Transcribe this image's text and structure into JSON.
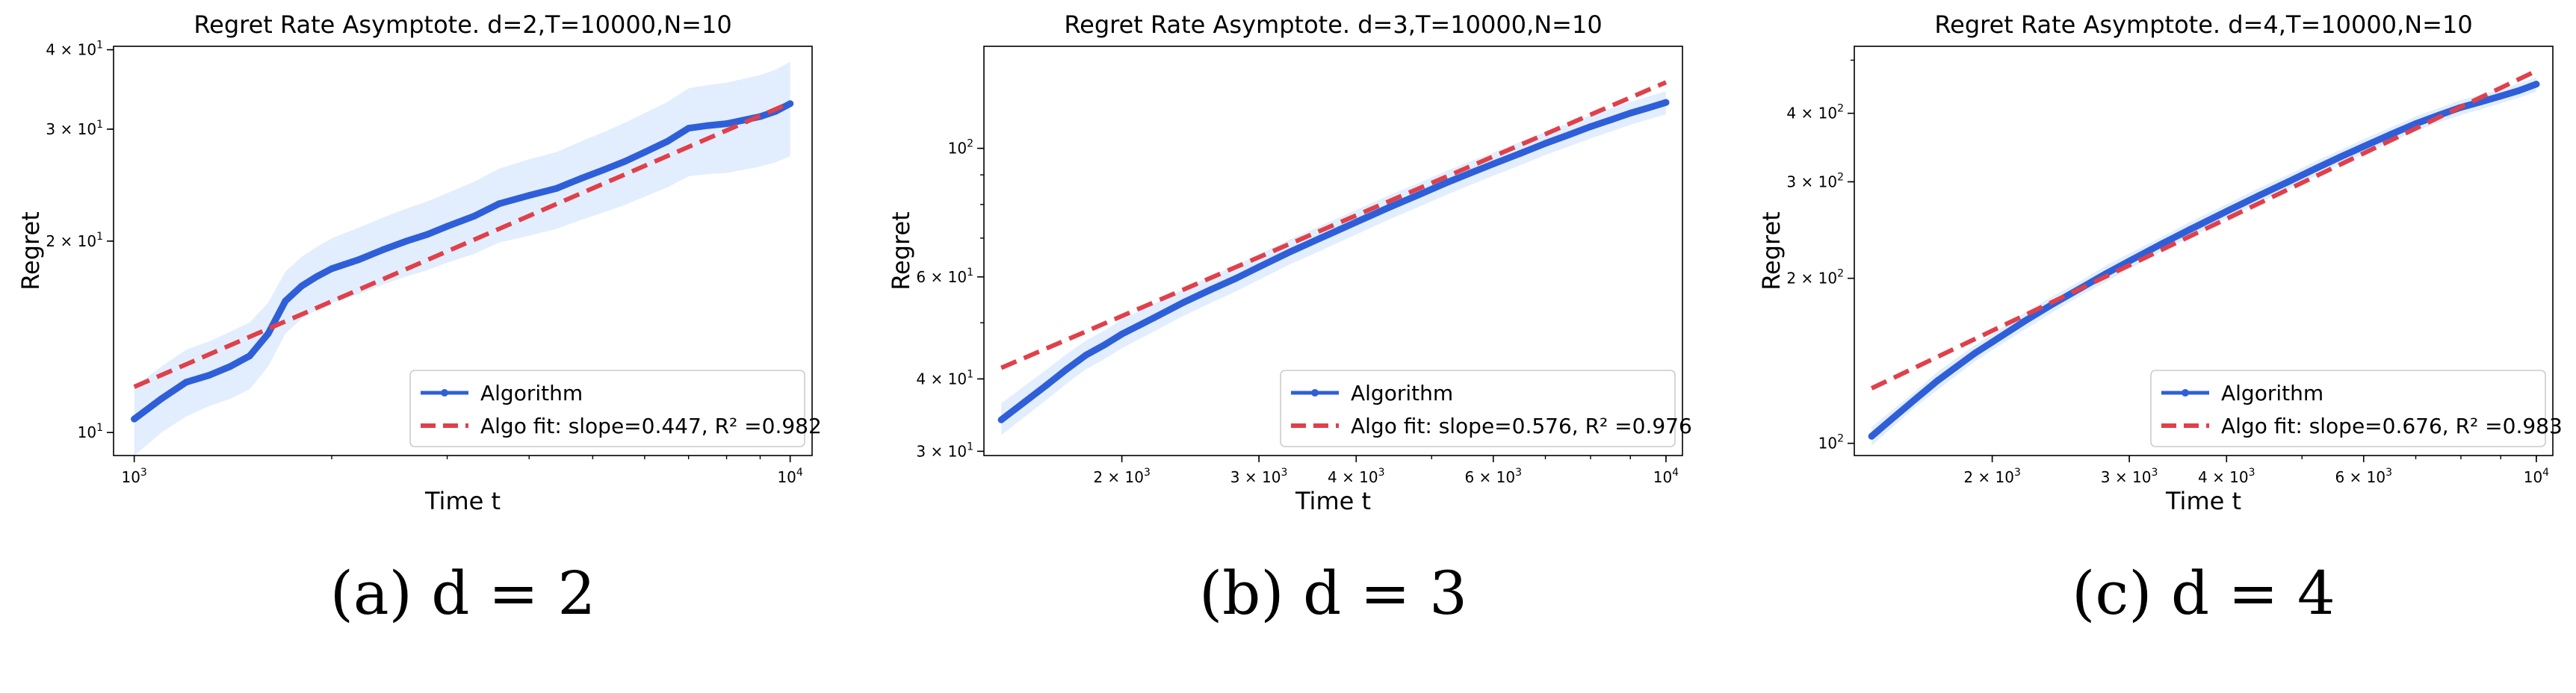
{
  "chart_data": [
    {
      "type": "line",
      "title": "Regret Rate Asymptote. d=2,T=10000,N=10",
      "xlabel": "Time t",
      "ylabel": "Regret",
      "xscale": "log",
      "yscale": "log",
      "xlim": [
        930,
        10800
      ],
      "ylim": [
        9.2,
        40.5
      ],
      "xticks": [
        {
          "v": 1000,
          "label": "10",
          "exp": "3"
        },
        {
          "v": 10000,
          "label": "10",
          "exp": "4"
        }
      ],
      "yticks": [
        {
          "v": 10,
          "label": "10",
          "exp": "1"
        },
        {
          "v": 20,
          "label": "2 × 10",
          "exp": "1"
        },
        {
          "v": 30,
          "label": "3 × 10",
          "exp": "1"
        },
        {
          "v": 40,
          "label": "4 × 10",
          "exp": "1"
        }
      ],
      "series": [
        {
          "name": "Algorithm",
          "color": "#2f5fd8",
          "x": [
            1000,
            1100,
            1200,
            1300,
            1400,
            1500,
            1600,
            1700,
            1800,
            1900,
            2000,
            2200,
            2400,
            2600,
            2800,
            3000,
            3300,
            3600,
            4000,
            4400,
            4800,
            5200,
            5600,
            6000,
            6500,
            7000,
            7500,
            8000,
            8500,
            9000,
            9500,
            10000
          ],
          "y": [
            10.5,
            11.3,
            12.0,
            12.3,
            12.7,
            13.2,
            14.3,
            16.1,
            17.0,
            17.6,
            18.1,
            18.7,
            19.4,
            20.0,
            20.5,
            21.1,
            21.9,
            22.9,
            23.6,
            24.2,
            25.1,
            25.9,
            26.7,
            27.6,
            28.7,
            30.1,
            30.4,
            30.6,
            31.0,
            31.4,
            32.0,
            32.9
          ],
          "band_low": [
            9.2,
            10.0,
            10.6,
            11.0,
            11.3,
            11.7,
            12.7,
            14.3,
            15.1,
            15.6,
            16.0,
            16.5,
            17.1,
            17.6,
            18.0,
            18.5,
            19.1,
            19.9,
            20.4,
            20.9,
            21.6,
            22.2,
            22.8,
            23.5,
            24.3,
            25.3,
            25.5,
            25.6,
            25.9,
            26.2,
            26.6,
            27.2
          ],
          "band_high": [
            11.8,
            12.7,
            13.5,
            13.9,
            14.4,
            14.9,
            16.0,
            17.9,
            18.9,
            19.6,
            20.2,
            21.0,
            21.8,
            22.5,
            23.1,
            23.8,
            24.8,
            26.0,
            26.9,
            27.6,
            28.7,
            29.7,
            30.7,
            31.8,
            33.1,
            34.8,
            35.2,
            35.5,
            36.0,
            36.5,
            37.2,
            38.3
          ]
        },
        {
          "name": "Algo fit: slope=0.447, R² =0.982",
          "style": "dashed",
          "color": "#e0404a",
          "x": [
            1000,
            10000
          ],
          "y": [
            11.8,
            33.0
          ]
        }
      ],
      "legend": {
        "position": "bottom-right",
        "entries": [
          "Algorithm",
          "Algo fit: slope=0.447, R² =0.982"
        ]
      },
      "caption": "(a) d = 2"
    },
    {
      "type": "line",
      "title": "Regret Rate Asymptote. d=3,T=10000,N=10",
      "xlabel": "Time t",
      "ylabel": "Regret",
      "xscale": "log",
      "yscale": "log",
      "xlim": [
        1330,
        10500
      ],
      "ylim": [
        29.5,
        150
      ],
      "xticks": [
        {
          "v": 2000,
          "label": "2 × 10",
          "exp": "3"
        },
        {
          "v": 3000,
          "label": "3 × 10",
          "exp": "3"
        },
        {
          "v": 4000,
          "label": "4 × 10",
          "exp": "3"
        },
        {
          "v": 6000,
          "label": "6 × 10",
          "exp": "3"
        },
        {
          "v": 10000,
          "label": "10",
          "exp": "4"
        }
      ],
      "yticks": [
        {
          "v": 30,
          "label": "3 × 10",
          "exp": "1"
        },
        {
          "v": 40,
          "label": "4 × 10",
          "exp": "1"
        },
        {
          "v": 60,
          "label": "6 × 10",
          "exp": "1"
        },
        {
          "v": 100,
          "label": "10",
          "exp": "2"
        }
      ],
      "series": [
        {
          "name": "Algorithm",
          "color": "#2f5fd8",
          "x": [
            1400,
            1500,
            1600,
            1700,
            1800,
            1900,
            2000,
            2200,
            2400,
            2600,
            2800,
            3000,
            3300,
            3600,
            4000,
            4400,
            4800,
            5200,
            5600,
            6000,
            6500,
            7000,
            7500,
            8000,
            8500,
            9000,
            9500,
            10000
          ],
          "y": [
            34.0,
            36.5,
            39.0,
            41.6,
            44.0,
            45.8,
            47.8,
            51.0,
            54.2,
            57.0,
            59.6,
            62.4,
            66.4,
            70.0,
            74.6,
            79.0,
            83.0,
            87.0,
            90.6,
            94.0,
            98.0,
            102.0,
            105.5,
            109.0,
            112.0,
            115.0,
            117.5,
            120.0
          ],
          "band_low": [
            32.0,
            34.4,
            36.8,
            39.3,
            41.6,
            43.3,
            45.2,
            48.3,
            51.4,
            54.1,
            56.6,
            59.3,
            63.2,
            66.6,
            71.0,
            75.3,
            79.1,
            82.9,
            86.4,
            89.7,
            93.5,
            97.4,
            100.7,
            104.0,
            106.9,
            109.8,
            112.2,
            114.5
          ],
          "band_high": [
            36.3,
            38.9,
            41.5,
            44.2,
            46.6,
            48.5,
            50.6,
            53.9,
            57.2,
            60.1,
            62.8,
            65.7,
            69.8,
            73.5,
            78.3,
            82.9,
            87.0,
            91.2,
            94.9,
            98.4,
            102.6,
            106.7,
            110.4,
            114.0,
            117.2,
            120.3,
            122.9,
            125.5
          ]
        },
        {
          "name": "Algo fit: slope=0.576, R² =0.976",
          "style": "dashed",
          "color": "#e0404a",
          "x": [
            1400,
            10000
          ],
          "y": [
            41.8,
            130.0
          ]
        }
      ],
      "legend": {
        "position": "bottom-right",
        "entries": [
          "Algorithm",
          "Algo fit: slope=0.576, R² =0.976"
        ]
      },
      "caption": "(b) d = 3"
    },
    {
      "type": "line",
      "title": "Regret Rate Asymptote. d=4,T=10000,N=10",
      "xlabel": "Time t",
      "ylabel": "Regret",
      "xscale": "log",
      "yscale": "log",
      "xlim": [
        1330,
        10500
      ],
      "ylim": [
        95,
        530
      ],
      "xticks": [
        {
          "v": 2000,
          "label": "2 × 10",
          "exp": "3"
        },
        {
          "v": 3000,
          "label": "3 × 10",
          "exp": "3"
        },
        {
          "v": 4000,
          "label": "4 × 10",
          "exp": "3"
        },
        {
          "v": 6000,
          "label": "6 × 10",
          "exp": "3"
        },
        {
          "v": 10000,
          "label": "10",
          "exp": "4"
        }
      ],
      "yticks": [
        {
          "v": 100,
          "label": "10",
          "exp": "2"
        },
        {
          "v": 200,
          "label": "2 × 10",
          "exp": "2"
        },
        {
          "v": 300,
          "label": "3 × 10",
          "exp": "2"
        },
        {
          "v": 400,
          "label": "4 × 10",
          "exp": "2"
        }
      ],
      "series": [
        {
          "name": "Algorithm",
          "color": "#2f5fd8",
          "x": [
            1400,
            1500,
            1600,
            1700,
            1800,
            1900,
            2000,
            2200,
            2400,
            2600,
            2800,
            3000,
            3300,
            3600,
            4000,
            4400,
            4800,
            5200,
            5600,
            6000,
            6500,
            7000,
            7500,
            8000,
            8500,
            9000,
            9500,
            10000
          ],
          "y": [
            103,
            112,
            121,
            130,
            138,
            146,
            153,
            167,
            180,
            192,
            204,
            215,
            231,
            246,
            265,
            283,
            300,
            317,
            333,
            348,
            366,
            383,
            397,
            410,
            420,
            430,
            440,
            452
          ],
          "band_low": [
            99,
            108,
            117,
            125,
            133,
            141,
            148,
            161,
            174,
            186,
            197,
            208,
            224,
            238,
            257,
            274,
            291,
            307,
            323,
            337,
            355,
            371,
            385,
            397,
            407,
            417,
            427,
            438
          ],
          "band_high": [
            107,
            116,
            125,
            135,
            143,
            151,
            158,
            173,
            186,
            198,
            211,
            222,
            238,
            254,
            273,
            292,
            309,
            327,
            343,
            359,
            377,
            395,
            409,
            423,
            433,
            443,
            453,
            466
          ]
        },
        {
          "name": "Algo fit: slope=0.676, R² =0.983",
          "style": "dashed",
          "color": "#e0404a",
          "x": [
            1400,
            10000
          ],
          "y": [
            126,
            478
          ]
        }
      ],
      "legend": {
        "position": "bottom-right",
        "entries": [
          "Algorithm",
          "Algo fit: slope=0.676, R² =0.983"
        ]
      },
      "caption": "(c) d = 4"
    }
  ]
}
